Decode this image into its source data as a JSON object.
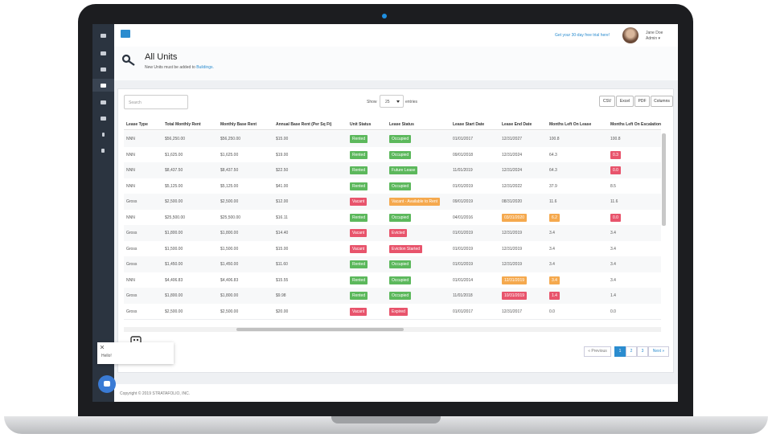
{
  "topbar": {
    "trial_link": "Get your 30-day free trial here!",
    "user_name": "Jane Doe",
    "user_role": "Admin ▾"
  },
  "header": {
    "title": "All Units",
    "subtitle": "New Units must be added to",
    "subtitle_link": "Buildings."
  },
  "controls": {
    "search_placeholder": "Search",
    "show_label": "Show",
    "page_size": "25",
    "entries_label": "entries",
    "buttons": [
      "CSV",
      "Excel",
      "PDF",
      "Columns"
    ]
  },
  "table": {
    "columns": [
      "Lease Type",
      "Total Monthly Rent",
      "Monthly Base Rent",
      "Annual Base Rent (Per Sq Ft)",
      "Unit Status",
      "Lease Status",
      "Lease Start Date",
      "Lease End Date",
      "Months Left On Lease",
      "Months Left On Escalation"
    ],
    "rows": [
      [
        "NNN",
        "$56,250.00",
        "$56,250.00",
        "$15.00",
        {
          "text": "Rented",
          "badge": "green"
        },
        {
          "text": "Occupied",
          "badge": "green"
        },
        "01/01/2017",
        "12/31/2027",
        "100.8",
        "100.8"
      ],
      [
        "NNN",
        "$1,625.00",
        "$1,625.00",
        "$19.00",
        {
          "text": "Rented",
          "badge": "green"
        },
        {
          "text": "Occupied",
          "badge": "green"
        },
        "09/01/2018",
        "12/31/2024",
        "64.3",
        {
          "text": "0.3",
          "badge": "red"
        }
      ],
      [
        "NNN",
        "$8,437.50",
        "$8,437.50",
        "$22.50",
        {
          "text": "Rented",
          "badge": "green"
        },
        {
          "text": "Future Lease",
          "badge": "green"
        },
        "11/01/2019",
        "12/31/2024",
        "64.3",
        {
          "text": "0.0",
          "badge": "red"
        }
      ],
      [
        "NNN",
        "$5,125.00",
        "$5,125.00",
        "$41.00",
        {
          "text": "Rented",
          "badge": "green"
        },
        {
          "text": "Occupied",
          "badge": "green"
        },
        "01/01/2019",
        "12/31/2022",
        "37.9",
        "8.5"
      ],
      [
        "Gross",
        "$2,500.00",
        "$2,500.00",
        "$12.00",
        {
          "text": "Vacant",
          "badge": "red"
        },
        {
          "text": "Vacant - Available to Rent",
          "badge": "orange"
        },
        "09/01/2019",
        "08/31/2020",
        "11.6",
        "11.6"
      ],
      [
        "NNN",
        "$25,500.00",
        "$25,500.00",
        "$16.11",
        {
          "text": "Rented",
          "badge": "green"
        },
        {
          "text": "Occupied",
          "badge": "green"
        },
        "04/01/2016",
        {
          "text": "03/31/2020",
          "badge": "orange"
        },
        {
          "text": "6.2",
          "badge": "orange"
        },
        {
          "text": "0.0",
          "badge": "red"
        }
      ],
      [
        "Gross",
        "$1,800.00",
        "$1,800.00",
        "$14.40",
        {
          "text": "Vacant",
          "badge": "red"
        },
        {
          "text": "Evicted",
          "badge": "red"
        },
        "01/01/2019",
        "12/31/2019",
        "3.4",
        "3.4"
      ],
      [
        "Gross",
        "$1,500.00",
        "$1,500.00",
        "$15.00",
        {
          "text": "Vacant",
          "badge": "red"
        },
        {
          "text": "Eviction Started",
          "badge": "red"
        },
        "01/01/2019",
        "12/31/2019",
        "3.4",
        "3.4"
      ],
      [
        "Gross",
        "$1,450.00",
        "$1,450.00",
        "$11.60",
        {
          "text": "Rented",
          "badge": "green"
        },
        {
          "text": "Occupied",
          "badge": "green"
        },
        "01/01/2019",
        "12/31/2019",
        "3.4",
        "3.4"
      ],
      [
        "NNN",
        "$4,406.83",
        "$4,406.83",
        "$15.55",
        {
          "text": "Rented",
          "badge": "green"
        },
        {
          "text": "Occupied",
          "badge": "green"
        },
        "01/01/2014",
        {
          "text": "12/31/2019",
          "badge": "orange"
        },
        {
          "text": "3.4",
          "badge": "orange"
        },
        "3.4"
      ],
      [
        "Gross",
        "$1,800.00",
        "$1,800.00",
        "$9.98",
        {
          "text": "Rented",
          "badge": "green"
        },
        {
          "text": "Occupied",
          "badge": "green"
        },
        "11/01/2018",
        {
          "text": "10/31/2019",
          "badge": "red"
        },
        {
          "text": "1.4",
          "badge": "red"
        },
        "1.4"
      ],
      [
        "Gross",
        "$2,500.00",
        "$2,500.00",
        "$20.00",
        {
          "text": "Vacant",
          "badge": "red"
        },
        {
          "text": "Expired",
          "badge": "red"
        },
        "01/01/2017",
        "12/31/2017",
        "0.0",
        "0.0"
      ]
    ]
  },
  "pagination": {
    "previous": "« Previous",
    "pages": [
      "1",
      "2",
      "3"
    ],
    "next": "Next »",
    "active": 0
  },
  "chat": {
    "greeting": "Hello!"
  },
  "footer": {
    "copyright": "Copyright © 2019 STRATAFOLIO, INC."
  }
}
